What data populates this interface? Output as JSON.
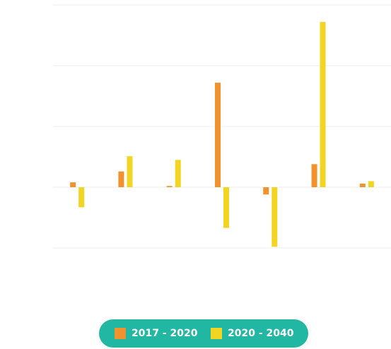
{
  "chart_data": {
    "type": "bar",
    "categories": [
      null,
      null,
      null,
      null,
      null,
      null,
      null
    ],
    "series": [
      {
        "name": "2017 - 2020",
        "color": "#f0922e",
        "values": [
          0.08,
          0.26,
          0.02,
          1.72,
          -0.12,
          0.38,
          0.06
        ]
      },
      {
        "name": "2020 - 2040",
        "color": "#f2d422",
        "values": [
          -0.33,
          0.51,
          0.45,
          -0.67,
          -0.98,
          2.72,
          0.1
        ]
      }
    ],
    "ylim": [
      -1,
      3
    ],
    "yticks": [
      -1,
      0,
      1,
      2,
      3
    ],
    "grid": true,
    "legend": "bottom"
  }
}
